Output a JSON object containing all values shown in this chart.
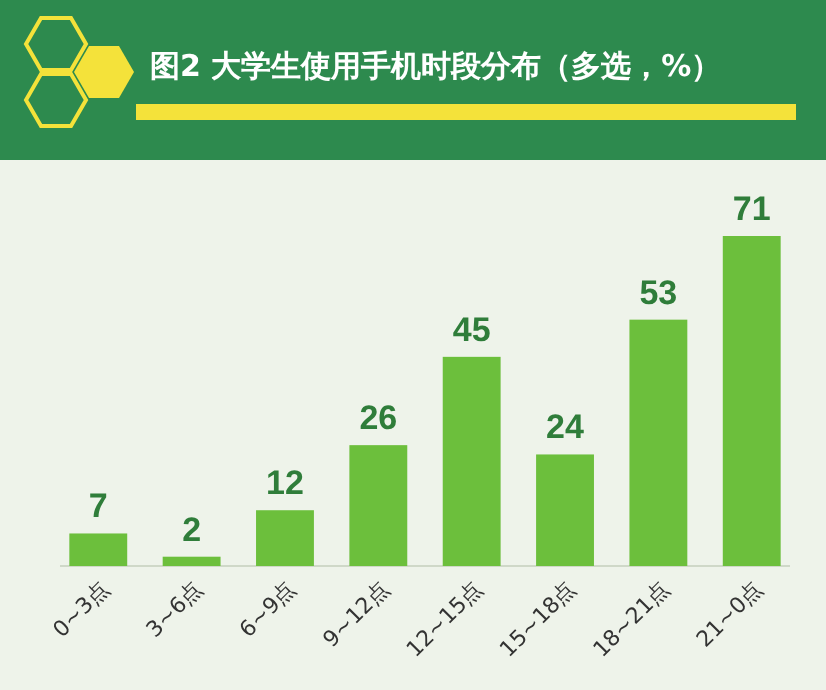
{
  "chart_data": {
    "type": "bar",
    "title": "图2 大学生使用手机时段分布（多选，%）",
    "categories": [
      "0~3点",
      "3~6点",
      "6~9点",
      "9~12点",
      "12~15点",
      "15~18点",
      "18~21点",
      "21~0点"
    ],
    "values": [
      7,
      2,
      12,
      26,
      45,
      24,
      53,
      71
    ],
    "color": "#6cbf3c",
    "data_labels": true
  }
}
